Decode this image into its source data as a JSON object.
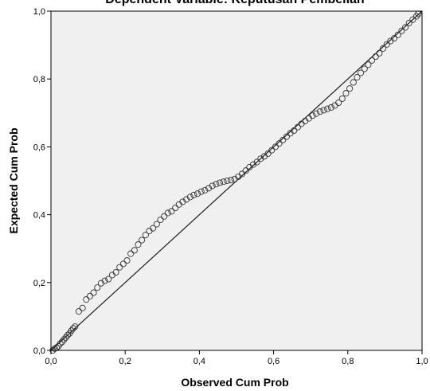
{
  "chart_data": {
    "type": "scatter",
    "title": "Dependent Variable: Keputusan Pembelian",
    "xlabel": "Observed Cum Prob",
    "ylabel": "Expected Cum Prob",
    "xlim": [
      0,
      1
    ],
    "ylim": [
      0,
      1
    ],
    "x_ticks": [
      "0,0",
      "0,2",
      "0,4",
      "0,6",
      "0,8",
      "1,0"
    ],
    "y_ticks": [
      "0,0",
      "0,2",
      "0,4",
      "0,6",
      "0,8",
      "1,0"
    ],
    "grid": false,
    "reference_line": [
      [
        0,
        0
      ],
      [
        1,
        1
      ]
    ],
    "colors": {
      "plot_background": "#f0f0f0",
      "marker_stroke": "#333333",
      "reference_line": "#1a1a1a",
      "frame": "#000000"
    },
    "marker": "open-circle",
    "points": [
      [
        0.005,
        0.0
      ],
      [
        0.01,
        0.005
      ],
      [
        0.015,
        0.008
      ],
      [
        0.02,
        0.012
      ],
      [
        0.025,
        0.02
      ],
      [
        0.03,
        0.025
      ],
      [
        0.035,
        0.032
      ],
      [
        0.04,
        0.038
      ],
      [
        0.045,
        0.045
      ],
      [
        0.05,
        0.05
      ],
      [
        0.055,
        0.058
      ],
      [
        0.06,
        0.065
      ],
      [
        0.065,
        0.07
      ],
      [
        0.075,
        0.115
      ],
      [
        0.085,
        0.125
      ],
      [
        0.095,
        0.15
      ],
      [
        0.105,
        0.16
      ],
      [
        0.115,
        0.17
      ],
      [
        0.125,
        0.185
      ],
      [
        0.135,
        0.198
      ],
      [
        0.145,
        0.205
      ],
      [
        0.155,
        0.21
      ],
      [
        0.165,
        0.222
      ],
      [
        0.175,
        0.23
      ],
      [
        0.185,
        0.245
      ],
      [
        0.195,
        0.255
      ],
      [
        0.205,
        0.265
      ],
      [
        0.215,
        0.285
      ],
      [
        0.225,
        0.295
      ],
      [
        0.235,
        0.312
      ],
      [
        0.245,
        0.325
      ],
      [
        0.255,
        0.34
      ],
      [
        0.265,
        0.352
      ],
      [
        0.275,
        0.36
      ],
      [
        0.285,
        0.372
      ],
      [
        0.295,
        0.385
      ],
      [
        0.305,
        0.395
      ],
      [
        0.315,
        0.405
      ],
      [
        0.325,
        0.41
      ],
      [
        0.335,
        0.42
      ],
      [
        0.345,
        0.43
      ],
      [
        0.355,
        0.438
      ],
      [
        0.365,
        0.445
      ],
      [
        0.375,
        0.452
      ],
      [
        0.385,
        0.458
      ],
      [
        0.395,
        0.462
      ],
      [
        0.405,
        0.468
      ],
      [
        0.415,
        0.472
      ],
      [
        0.425,
        0.478
      ],
      [
        0.435,
        0.485
      ],
      [
        0.445,
        0.49
      ],
      [
        0.455,
        0.494
      ],
      [
        0.465,
        0.497
      ],
      [
        0.475,
        0.5
      ],
      [
        0.485,
        0.502
      ],
      [
        0.495,
        0.505
      ],
      [
        0.505,
        0.512
      ],
      [
        0.515,
        0.52
      ],
      [
        0.525,
        0.53
      ],
      [
        0.535,
        0.54
      ],
      [
        0.545,
        0.548
      ],
      [
        0.555,
        0.555
      ],
      [
        0.565,
        0.565
      ],
      [
        0.575,
        0.572
      ],
      [
        0.585,
        0.58
      ],
      [
        0.595,
        0.59
      ],
      [
        0.605,
        0.6
      ],
      [
        0.615,
        0.61
      ],
      [
        0.625,
        0.62
      ],
      [
        0.635,
        0.63
      ],
      [
        0.645,
        0.64
      ],
      [
        0.655,
        0.648
      ],
      [
        0.665,
        0.658
      ],
      [
        0.675,
        0.668
      ],
      [
        0.685,
        0.676
      ],
      [
        0.695,
        0.684
      ],
      [
        0.705,
        0.692
      ],
      [
        0.715,
        0.698
      ],
      [
        0.725,
        0.704
      ],
      [
        0.735,
        0.708
      ],
      [
        0.745,
        0.712
      ],
      [
        0.755,
        0.716
      ],
      [
        0.765,
        0.722
      ],
      [
        0.775,
        0.73
      ],
      [
        0.785,
        0.742
      ],
      [
        0.795,
        0.758
      ],
      [
        0.805,
        0.772
      ],
      [
        0.815,
        0.79
      ],
      [
        0.825,
        0.805
      ],
      [
        0.835,
        0.818
      ],
      [
        0.845,
        0.83
      ],
      [
        0.855,
        0.842
      ],
      [
        0.865,
        0.855
      ],
      [
        0.875,
        0.866
      ],
      [
        0.885,
        0.876
      ],
      [
        0.895,
        0.89
      ],
      [
        0.905,
        0.902
      ],
      [
        0.915,
        0.912
      ],
      [
        0.925,
        0.92
      ],
      [
        0.935,
        0.93
      ],
      [
        0.945,
        0.942
      ],
      [
        0.955,
        0.952
      ],
      [
        0.965,
        0.965
      ],
      [
        0.975,
        0.975
      ],
      [
        0.985,
        0.985
      ],
      [
        0.99,
        0.992
      ]
    ]
  }
}
